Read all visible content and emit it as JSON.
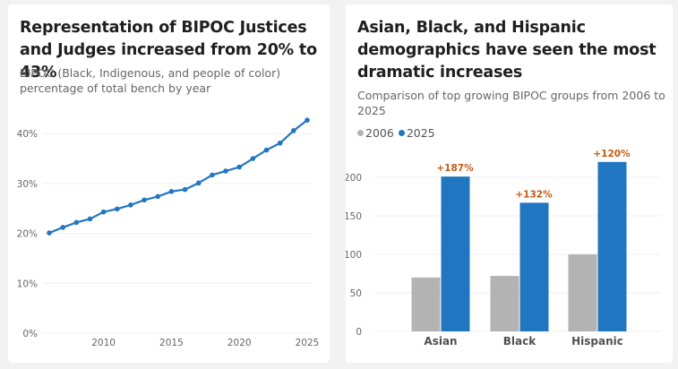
{
  "colors": {
    "background": "#f2f2f2",
    "line": "#2176c2",
    "bar_2006": "#b3b3b3",
    "bar_2025": "#2176c2",
    "annotation": "#c55a11",
    "gridline": "#efefef",
    "tick_text": "#666666"
  },
  "left_card": {
    "title": "Representation of BIPOC Justices and Judges increased from 20% to 43%",
    "subtitle": "BIPOC (Black, Indigenous, and people of color) percentage of total bench by year"
  },
  "right_card": {
    "title": "Asian, Black, and Hispanic demographics have seen the most dramatic increases",
    "subtitle": "Comparison of top growing BIPOC groups from 2006 to 2025",
    "legend": [
      {
        "label": "2006",
        "color": "#b3b3b3"
      },
      {
        "label": "2025",
        "color": "#2176c2"
      }
    ]
  },
  "chart_data": [
    {
      "type": "line",
      "title": "Representation of BIPOC Justices and Judges increased from 20% to 43%",
      "subtitle": "BIPOC (Black, Indigenous, and people of color) percentage of total bench by year",
      "xlabel": "",
      "ylabel": "",
      "x": [
        2006,
        2007,
        2008,
        2009,
        2010,
        2011,
        2012,
        2013,
        2014,
        2015,
        2016,
        2017,
        2018,
        2019,
        2020,
        2021,
        2022,
        2023,
        2024,
        2025
      ],
      "series": [
        {
          "name": "BIPOC share",
          "values": [
            20.1,
            21.2,
            22.2,
            22.9,
            24.3,
            24.9,
            25.7,
            26.7,
            27.4,
            28.4,
            28.8,
            30.1,
            31.7,
            32.5,
            33.3,
            35.0,
            36.7,
            38.1,
            40.6,
            42.7
          ]
        }
      ],
      "xlim": [
        2006,
        2025
      ],
      "ylim": [
        0,
        45
      ],
      "xticks": [
        2010,
        2015,
        2020,
        2025
      ],
      "xtick_labels": [
        "2010",
        "2015",
        "2020",
        "2025"
      ],
      "yticks": [
        0,
        10,
        20,
        30,
        40
      ],
      "ytick_labels": [
        "0%",
        "10%",
        "20%",
        "30%",
        "40%"
      ],
      "grid": true,
      "markers": true
    },
    {
      "type": "bar",
      "title": "Asian, Black, and Hispanic demographics have seen the most dramatic increases",
      "subtitle": "Comparison of top growing BIPOC groups from 2006 to 2025",
      "categories": [
        "Asian",
        "Black",
        "Hispanic"
      ],
      "series": [
        {
          "name": "2006",
          "values": [
            70,
            72,
            100
          ]
        },
        {
          "name": "2025",
          "values": [
            201,
            167,
            220
          ]
        }
      ],
      "annotations": [
        "+187%",
        "+132%",
        "+120%"
      ],
      "xlabel": "",
      "ylabel": "",
      "ylim": [
        0,
        230
      ],
      "yticks": [
        0,
        50,
        100,
        150,
        200
      ],
      "ytick_labels": [
        "0",
        "50",
        "100",
        "150",
        "200"
      ],
      "legend": "top-left",
      "grid": true
    }
  ]
}
